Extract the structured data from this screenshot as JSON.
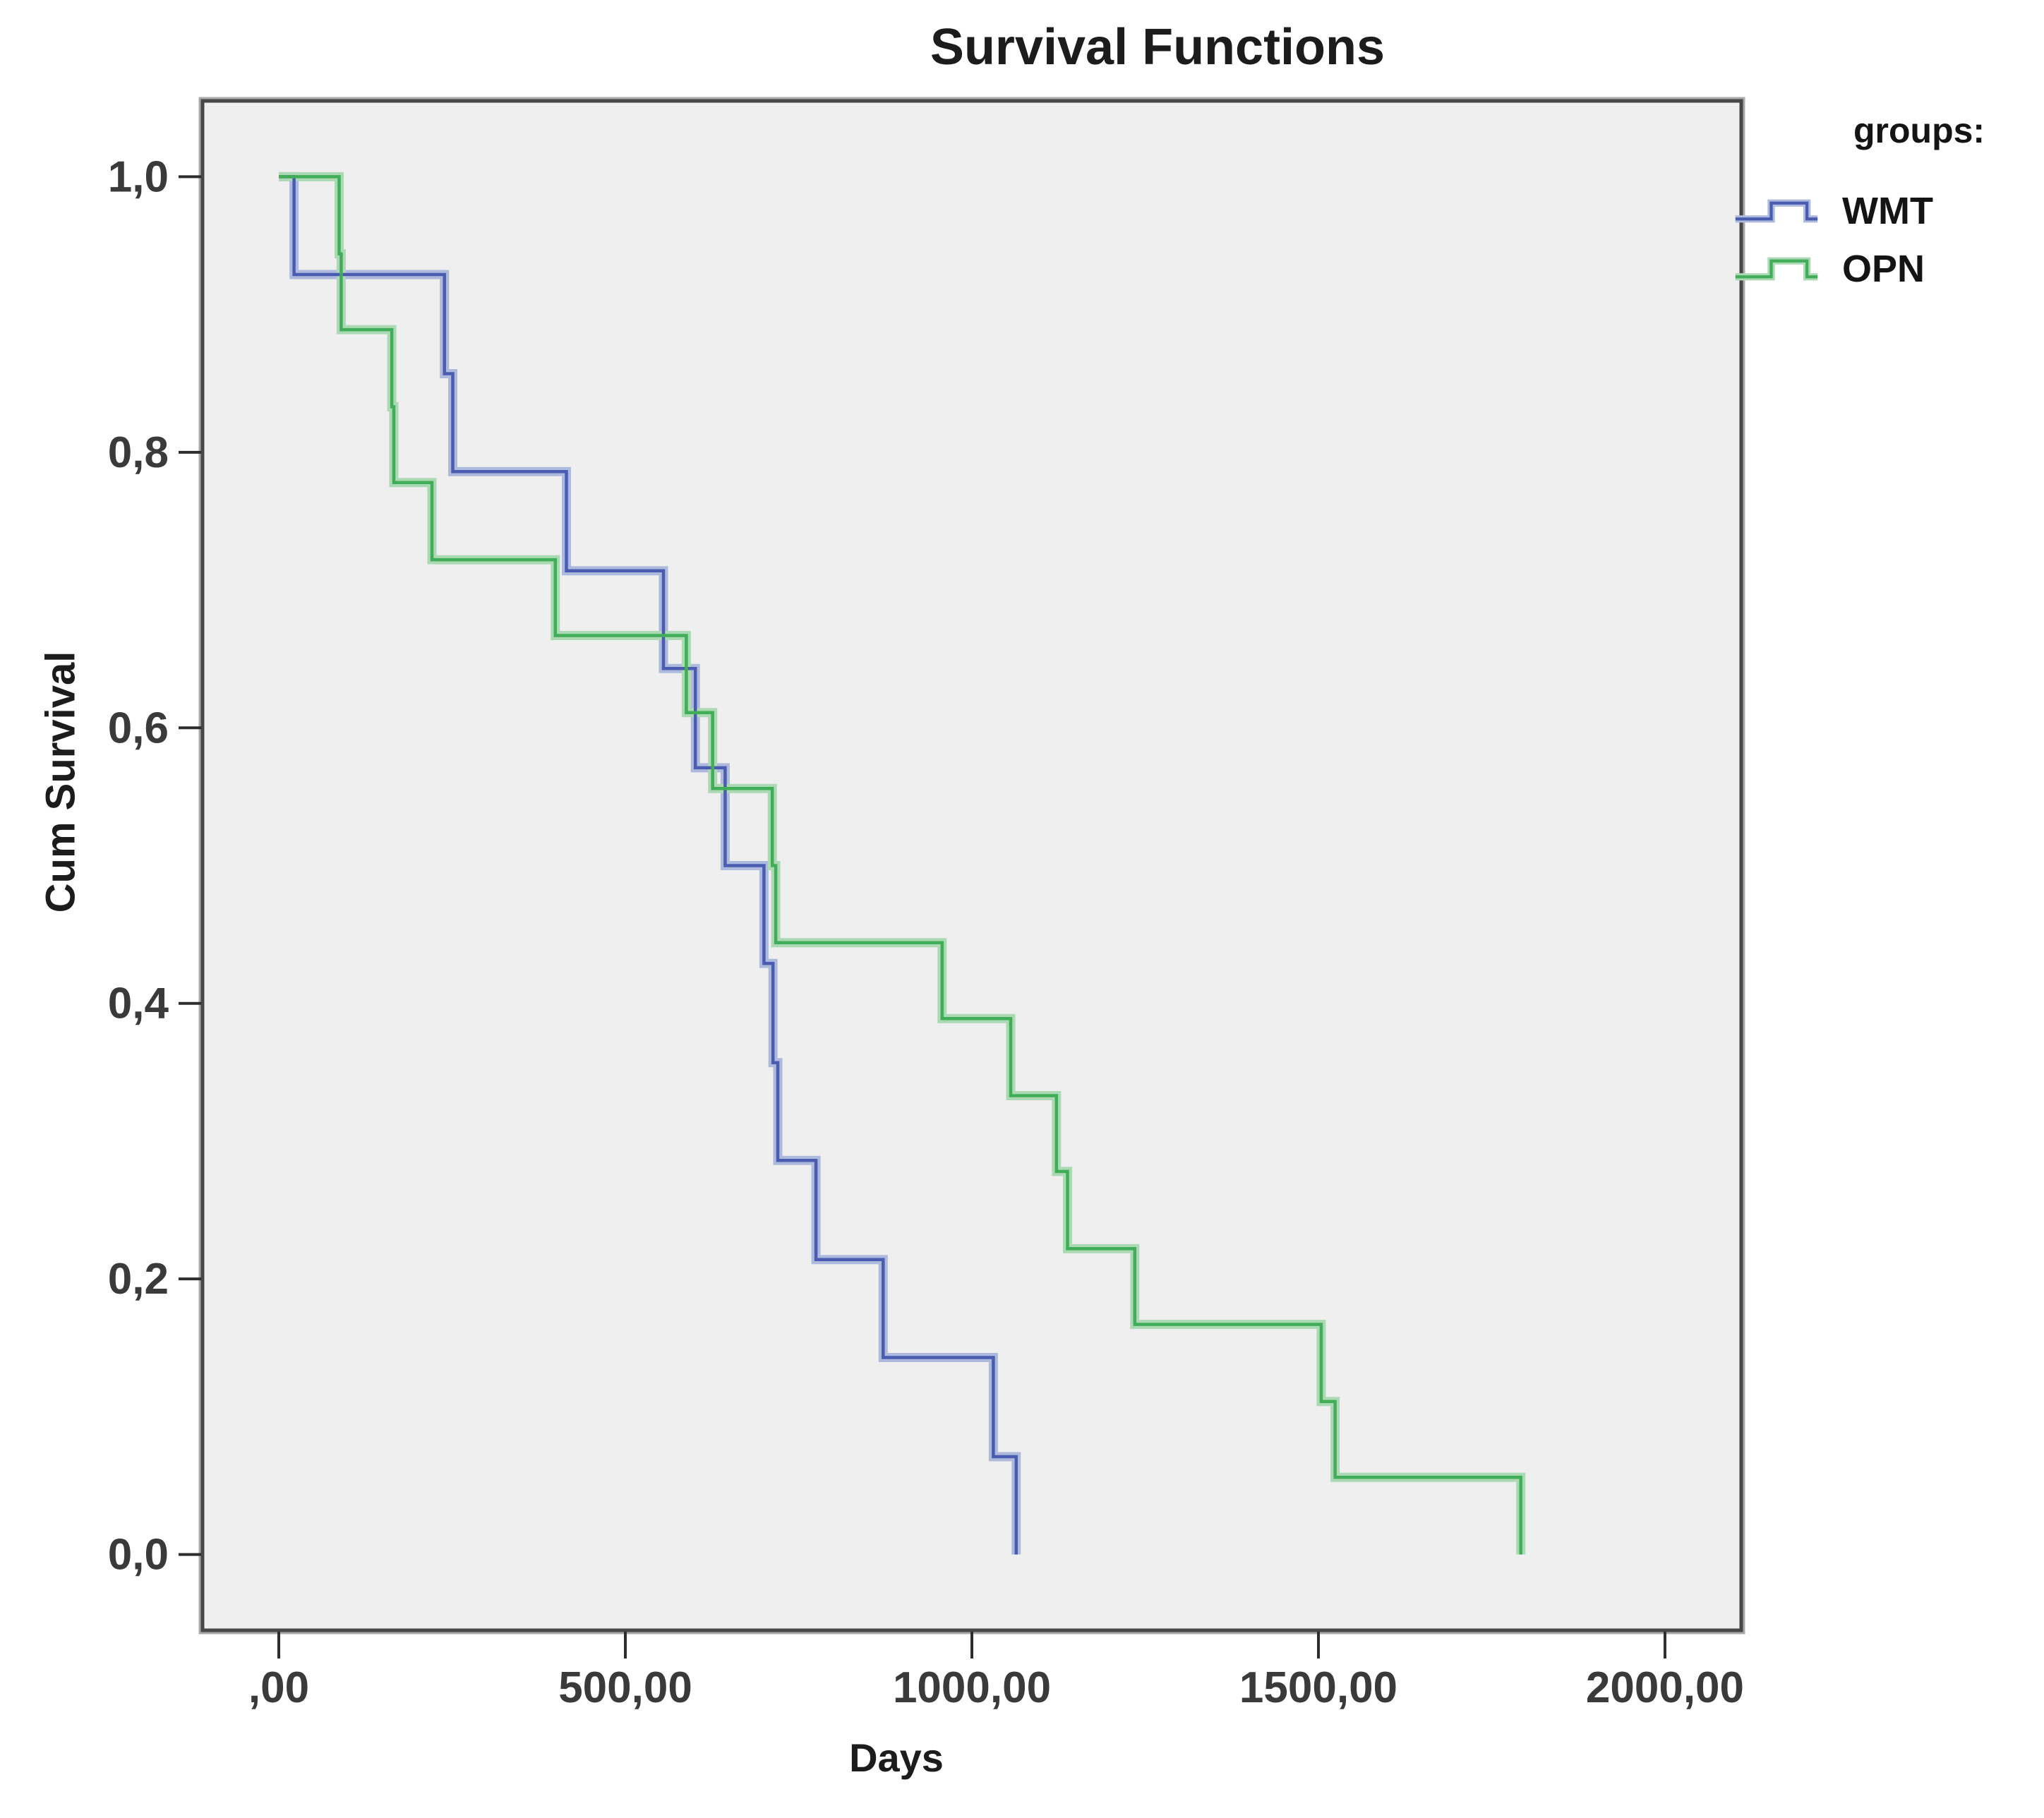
{
  "title": "Survival Functions",
  "legend": {
    "title": "groups:",
    "items": [
      {
        "label": "WMT",
        "color": "#4a5cb0",
        "halo": "#aeb9de"
      },
      {
        "label": "OPN",
        "color": "#42ad59",
        "halo": "#abd9b4"
      }
    ]
  },
  "chart_data": {
    "type": "line",
    "subtype": "kaplan-meier-step",
    "title": "Survival Functions",
    "xlabel": "Days",
    "ylabel": "Cum Survival",
    "xlim": [
      -110,
      2110
    ],
    "ylim": [
      -0.055,
      1.055
    ],
    "grid": false,
    "legend_position": "top-right",
    "plot_bg": "#efefef",
    "frame_color": "#474747",
    "frame_outer_color": "#a9a9a9",
    "tick_color": "#2d2d2d",
    "tick_label_color": "#3a3a3a",
    "x_ticks": [
      {
        "value": 0,
        "label": ",00"
      },
      {
        "value": 500,
        "label": "500,00"
      },
      {
        "value": 1000,
        "label": "1000,00"
      },
      {
        "value": 1500,
        "label": "1500,00"
      },
      {
        "value": 2000,
        "label": "2000,00"
      }
    ],
    "y_ticks": [
      {
        "value": 0.0,
        "label": "0,0"
      },
      {
        "value": 0.2,
        "label": "0,2"
      },
      {
        "value": 0.4,
        "label": "0,4"
      },
      {
        "value": 0.6,
        "label": "0,6"
      },
      {
        "value": 0.8,
        "label": "0,8"
      },
      {
        "value": 1.0,
        "label": "1,0"
      }
    ],
    "series": [
      {
        "name": "WMT",
        "color": "#4a5cb0",
        "halo_color": "#aeb9de",
        "points": [
          [
            0,
            1.0
          ],
          [
            22,
            0.929
          ],
          [
            239,
            0.857
          ],
          [
            251,
            0.786
          ],
          [
            415,
            0.714
          ],
          [
            555,
            0.643
          ],
          [
            601,
            0.571
          ],
          [
            644,
            0.5
          ],
          [
            700,
            0.429
          ],
          [
            713,
            0.357
          ],
          [
            720,
            0.286
          ],
          [
            775,
            0.214
          ],
          [
            872,
            0.143
          ],
          [
            1031,
            0.071
          ],
          [
            1064,
            0.0
          ]
        ]
      },
      {
        "name": "OPN",
        "color": "#42ad59",
        "halo_color": "#abd9b4",
        "points": [
          [
            0,
            1.0
          ],
          [
            87,
            0.944
          ],
          [
            90,
            0.889
          ],
          [
            163,
            0.833
          ],
          [
            166,
            0.778
          ],
          [
            221,
            0.722
          ],
          [
            399,
            0.667
          ],
          [
            588,
            0.611
          ],
          [
            626,
            0.556
          ],
          [
            712,
            0.5
          ],
          [
            717,
            0.444
          ],
          [
            957,
            0.389
          ],
          [
            1056,
            0.333
          ],
          [
            1122,
            0.278
          ],
          [
            1138,
            0.222
          ],
          [
            1235,
            0.167
          ],
          [
            1504,
            0.111
          ],
          [
            1524,
            0.056
          ],
          [
            1792,
            0.0
          ]
        ]
      }
    ]
  }
}
